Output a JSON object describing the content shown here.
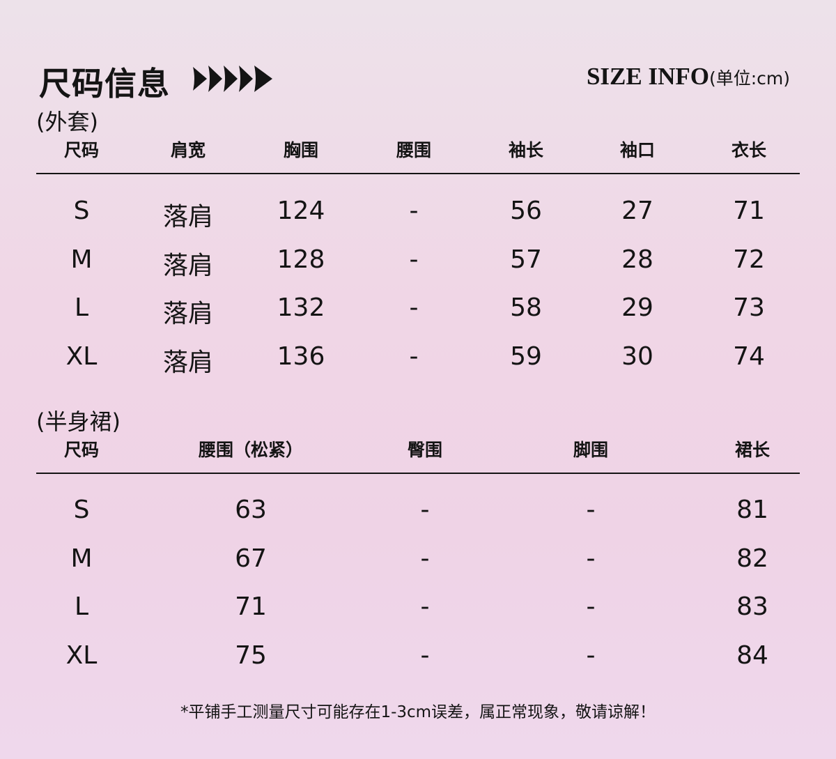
{
  "title": "尺码信息",
  "title_en": "SIZE INFO",
  "unit": "(单位:cm)",
  "jacket": {
    "section": "(外套)",
    "headers": [
      "尺码",
      "肩宽",
      "胸围",
      "腰围",
      "袖长",
      "袖口",
      "衣长"
    ],
    "rows": [
      [
        "S",
        "落肩",
        "124",
        "-",
        "56",
        "27",
        "71"
      ],
      [
        "M",
        "落肩",
        "128",
        "-",
        "57",
        "28",
        "72"
      ],
      [
        "L",
        "落肩",
        "132",
        "-",
        "58",
        "29",
        "73"
      ],
      [
        "XL",
        "落肩",
        "136",
        "-",
        "59",
        "30",
        "74"
      ]
    ]
  },
  "skirt": {
    "section": "(半身裙)",
    "headers": [
      "尺码",
      "腰围（松紧）",
      "臀围",
      "脚围",
      "裙长"
    ],
    "rows": [
      [
        "S",
        "63",
        "-",
        "-",
        "81"
      ],
      [
        "M",
        "67",
        "-",
        "-",
        "82"
      ],
      [
        "L",
        "71",
        "-",
        "-",
        "83"
      ],
      [
        "XL",
        "75",
        "-",
        "-",
        "84"
      ]
    ]
  },
  "note": "*平铺手工测量尺寸可能存在1-3cm误差，属正常现象，敬请谅解！"
}
